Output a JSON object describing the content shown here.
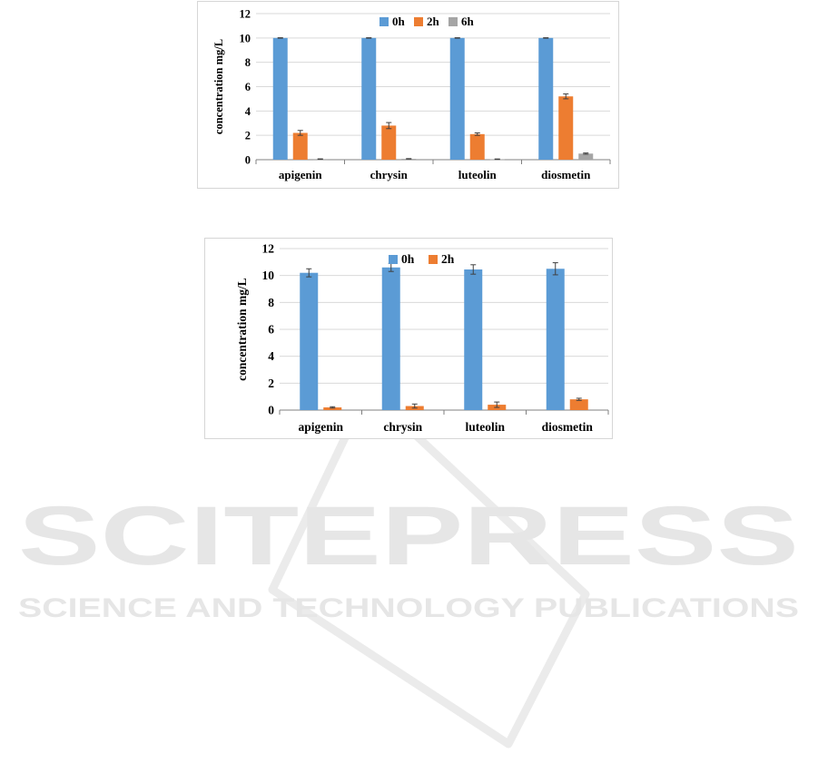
{
  "watermark": {
    "title": "SCITEPRESS",
    "subtitle": "SCIENCE AND TECHNOLOGY PUBLICATIONS",
    "color": "#e6e6e6"
  },
  "colors": {
    "0h": "#5b9bd5",
    "2h": "#ed7d31",
    "6h": "#a5a5a5",
    "grid": "#d9d9d9",
    "axis": "#808080"
  },
  "chart_data": [
    {
      "type": "bar",
      "ylabel": "concentration mg/L",
      "ylim": [
        0,
        12
      ],
      "yticks": [
        0,
        2,
        4,
        6,
        8,
        10,
        12
      ],
      "grid": true,
      "legend_position": "top",
      "categories": [
        "apigenin",
        "chrysin",
        "luteolin",
        "diosmetin"
      ],
      "series": [
        {
          "name": "0h",
          "values": [
            10.0,
            10.0,
            10.0,
            10.0
          ],
          "errors": [
            0.02,
            0.02,
            0.02,
            0.02
          ]
        },
        {
          "name": "2h",
          "values": [
            2.2,
            2.8,
            2.1,
            5.2
          ],
          "errors": [
            0.2,
            0.25,
            0.1,
            0.2
          ]
        },
        {
          "name": "6h",
          "values": [
            0.05,
            0.07,
            0.04,
            0.5
          ],
          "errors": [
            0.02,
            0.02,
            0.02,
            0.05
          ]
        }
      ]
    },
    {
      "type": "bar",
      "ylabel": "concentration mg/L",
      "ylim": [
        0,
        12
      ],
      "yticks": [
        0,
        2,
        4,
        6,
        8,
        10,
        12
      ],
      "grid": true,
      "legend_position": "top",
      "categories": [
        "apigenin",
        "chrysin",
        "luteolin",
        "diosmetin"
      ],
      "series": [
        {
          "name": "0h",
          "values": [
            10.2,
            10.6,
            10.45,
            10.5
          ],
          "errors": [
            0.3,
            0.3,
            0.35,
            0.45
          ]
        },
        {
          "name": "2h",
          "values": [
            0.2,
            0.3,
            0.4,
            0.8
          ],
          "errors": [
            0.05,
            0.15,
            0.2,
            0.08
          ]
        }
      ]
    }
  ]
}
